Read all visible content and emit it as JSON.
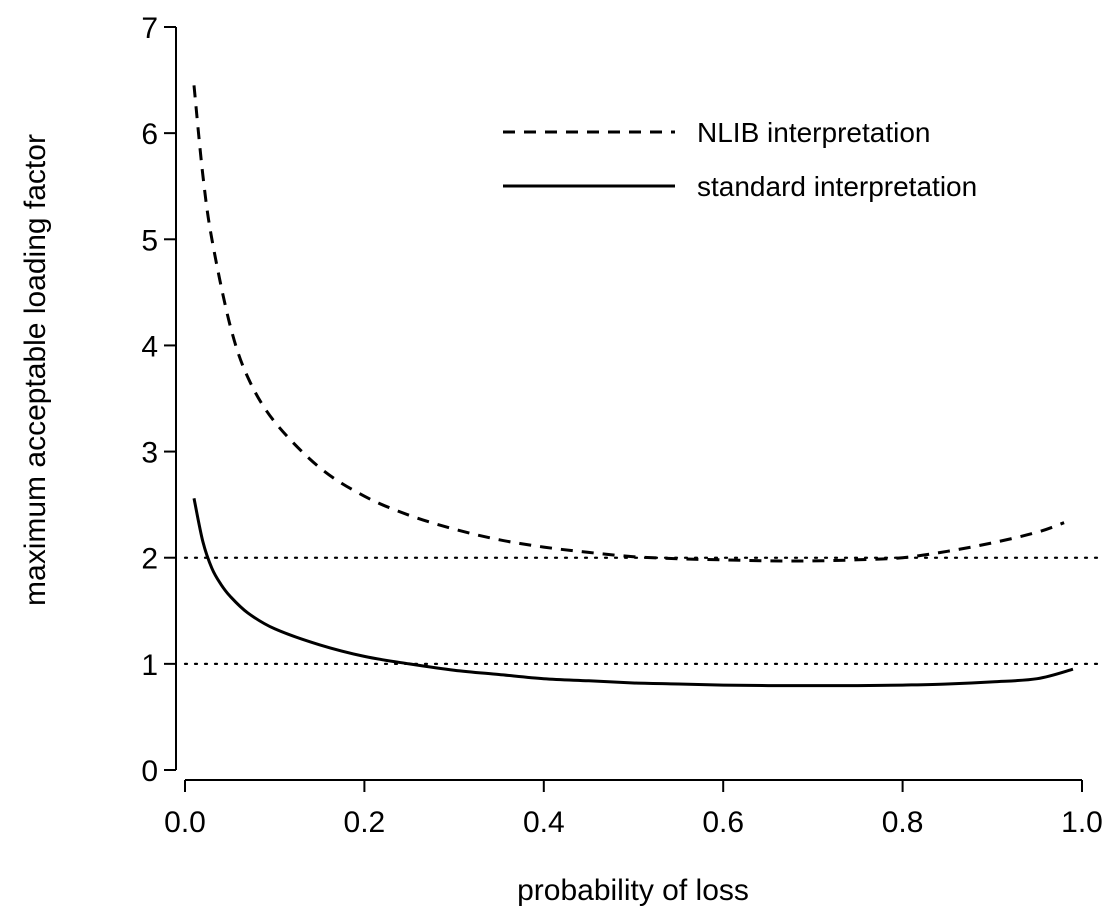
{
  "chart_data": {
    "type": "line",
    "title": "",
    "xlabel": "probability of loss",
    "ylabel": "maximum acceptable loading factor",
    "xlim": [
      0.0,
      1.0
    ],
    "ylim": [
      0,
      7
    ],
    "xticks": [
      0.0,
      0.2,
      0.4,
      0.6,
      0.8,
      1.0
    ],
    "xtick_labels": [
      "0.0",
      "0.2",
      "0.4",
      "0.6",
      "0.8",
      "1.0"
    ],
    "yticks": [
      0,
      1,
      2,
      3,
      4,
      5,
      6,
      7
    ],
    "ytick_labels": [
      "0",
      "1",
      "2",
      "3",
      "4",
      "5",
      "6",
      "7"
    ],
    "grid": false,
    "legend_position": "top-right",
    "reference_lines": [
      {
        "y": 1,
        "style": "dotted"
      },
      {
        "y": 2,
        "style": "dotted"
      }
    ],
    "series": [
      {
        "name": "NLIB interpretation",
        "style": "dashed",
        "color": "#000000",
        "x": [
          0.01,
          0.02,
          0.03,
          0.05,
          0.07,
          0.1,
          0.15,
          0.2,
          0.25,
          0.3,
          0.35,
          0.4,
          0.45,
          0.5,
          0.55,
          0.6,
          0.65,
          0.7,
          0.75,
          0.8,
          0.85,
          0.9,
          0.95,
          0.98
        ],
        "y": [
          6.45,
          5.6,
          5.0,
          4.2,
          3.7,
          3.28,
          2.85,
          2.58,
          2.4,
          2.27,
          2.17,
          2.1,
          2.05,
          2.01,
          1.99,
          1.98,
          1.97,
          1.97,
          1.98,
          2.0,
          2.06,
          2.14,
          2.24,
          2.33
        ]
      },
      {
        "name": "standard interpretation",
        "style": "solid",
        "color": "#000000",
        "x": [
          0.01,
          0.02,
          0.03,
          0.04,
          0.05,
          0.07,
          0.1,
          0.15,
          0.2,
          0.25,
          0.3,
          0.35,
          0.4,
          0.45,
          0.5,
          0.55,
          0.6,
          0.65,
          0.7,
          0.75,
          0.8,
          0.85,
          0.9,
          0.95,
          0.99
        ],
        "y": [
          2.56,
          2.15,
          1.9,
          1.75,
          1.64,
          1.48,
          1.33,
          1.18,
          1.07,
          1.0,
          0.94,
          0.9,
          0.86,
          0.84,
          0.82,
          0.81,
          0.8,
          0.795,
          0.795,
          0.795,
          0.8,
          0.81,
          0.83,
          0.86,
          0.95
        ]
      }
    ]
  }
}
